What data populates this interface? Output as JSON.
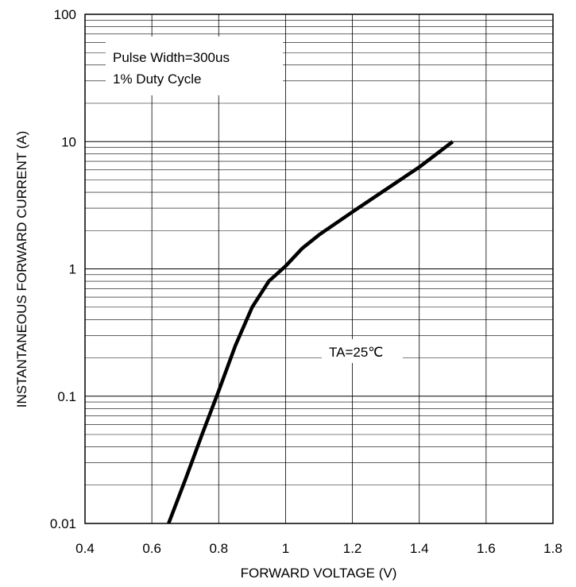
{
  "chart_data": {
    "type": "line",
    "title": "",
    "xlabel": "FORWARD VOLTAGE (V)",
    "ylabel": "INSTANTANEOUS FORWARD CURRENT (A)",
    "x_scale": "linear",
    "y_scale": "log",
    "xlim": [
      0.4,
      1.8
    ],
    "ylim": [
      0.01,
      100
    ],
    "x_ticks": [
      "0.4",
      "0.6",
      "0.8",
      "1",
      "1.2",
      "1.4",
      "1.6",
      "1.8"
    ],
    "y_ticks": [
      "0.01",
      "0.1",
      "1",
      "10",
      "100"
    ],
    "grid": true,
    "annotations": {
      "pulse_line1": "Pulse Width=300us",
      "pulse_line2": "1% Duty Cycle",
      "temperature": "TA=25℃"
    },
    "series": [
      {
        "x": [
          0.65,
          0.7,
          0.75,
          0.8,
          0.85,
          0.9,
          0.95,
          1.0,
          1.05,
          1.1,
          1.2,
          1.3,
          1.4,
          1.5
        ],
        "y": [
          0.01,
          0.022,
          0.05,
          0.11,
          0.25,
          0.5,
          0.8,
          1.05,
          1.45,
          1.85,
          2.8,
          4.2,
          6.3,
          10
        ]
      }
    ],
    "color": "#000000"
  }
}
